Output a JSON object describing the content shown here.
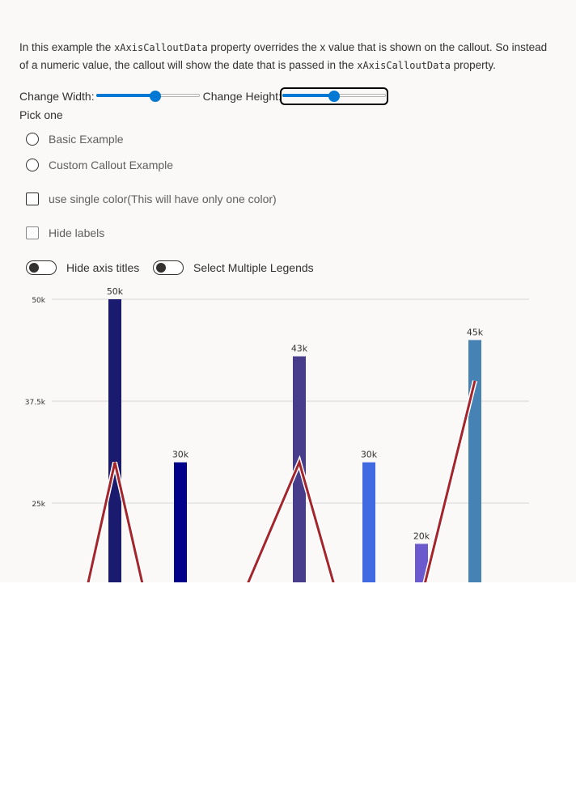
{
  "description": {
    "part1": "In this example the ",
    "code1": "xAxisCalloutData",
    "part2": " property overrides the x value that is shown on the callout. So instead of a numeric value, the callout will show the date that is passed in the ",
    "code2": "xAxisCalloutData",
    "part3": " property."
  },
  "controls": {
    "width_label": "Change Width:",
    "height_label": "Change Height:",
    "width_value": 0.58,
    "height_value": 0.5,
    "pick_label": "Pick one",
    "radios": [
      "Basic Example",
      "Custom Callout Example"
    ],
    "checkbox_single_color": "use single color(This will have only one color)",
    "checkbox_hide_labels": "Hide labels",
    "toggle_hide_axis_titles": "Hide axis titles",
    "toggle_multi_legends": "Select Multiple Legends"
  },
  "chart_data": {
    "type": "bar",
    "y_ticks": [
      "50k",
      "37.5k",
      "25k"
    ],
    "y_tick_values": [
      50000,
      37500,
      25000
    ],
    "ylim": [
      0,
      50000
    ],
    "bars": [
      {
        "value": 50000,
        "label": "50k",
        "color": "#1a1a6e"
      },
      {
        "value": 30000,
        "label": "30k",
        "color": "#00008b"
      },
      {
        "value": 43000,
        "label": "43k",
        "color": "#483d8b"
      },
      {
        "value": 30000,
        "label": "30k",
        "color": "#4169e1"
      },
      {
        "value": 20000,
        "label": "20k",
        "color": "#6a5acd"
      },
      {
        "value": 45000,
        "label": "45k",
        "color": "#4682b4"
      }
    ],
    "line": {
      "color": "#a4262c",
      "values": [
        9000,
        30000,
        9000,
        9000,
        30000,
        9000,
        9000,
        40000
      ]
    }
  }
}
